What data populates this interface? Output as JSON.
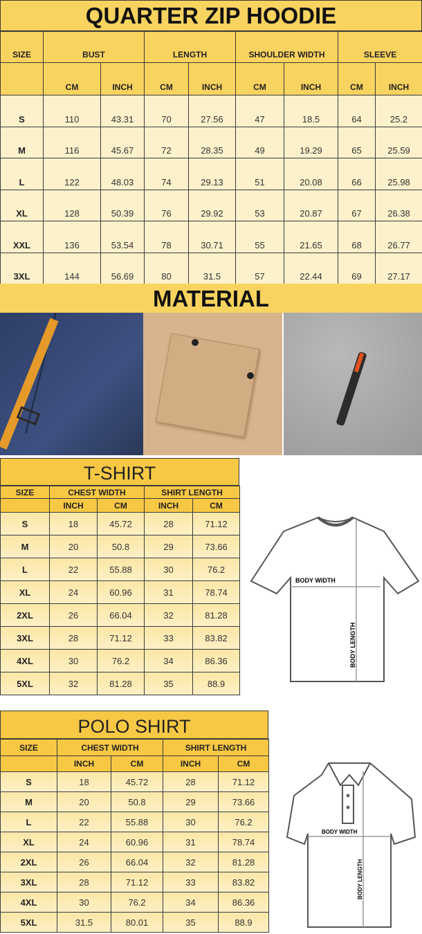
{
  "hoodie": {
    "title": "QUARTER ZIP HOODIE",
    "headers": [
      "SIZE",
      "BUST",
      "LENGTH",
      "SHOULDER WIDTH",
      "SLEEVE"
    ],
    "subheaders": [
      "CM",
      "INCH",
      "CM",
      "INCH",
      "CM",
      "INCH",
      "CM",
      "INCH"
    ],
    "rows": [
      [
        "S",
        "110",
        "43.31",
        "70",
        "27.56",
        "47",
        "18.5",
        "64",
        "25.2"
      ],
      [
        "M",
        "116",
        "45.67",
        "72",
        "28.35",
        "49",
        "19.29",
        "65",
        "25.59"
      ],
      [
        "L",
        "122",
        "48.03",
        "74",
        "29.13",
        "51",
        "20.08",
        "66",
        "25.98"
      ],
      [
        "XL",
        "128",
        "50.39",
        "76",
        "29.92",
        "53",
        "20.87",
        "67",
        "26.38"
      ],
      [
        "XXL",
        "136",
        "53.54",
        "78",
        "30.71",
        "55",
        "21.65",
        "68",
        "26.77"
      ],
      [
        "3XL",
        "144",
        "56.69",
        "80",
        "31.5",
        "57",
        "22.44",
        "69",
        "27.17"
      ]
    ]
  },
  "material": {
    "title": "MATERIAL"
  },
  "tshirt": {
    "title": "T-SHIRT",
    "headers": [
      "SIZE",
      "CHEST WIDTH",
      "SHIRT LENGTH"
    ],
    "subheaders": [
      "INCH",
      "CM",
      "INCH",
      "CM"
    ],
    "rows": [
      [
        "S",
        "18",
        "45.72",
        "28",
        "71.12"
      ],
      [
        "M",
        "20",
        "50.8",
        "29",
        "73.66"
      ],
      [
        "L",
        "22",
        "55.88",
        "30",
        "76.2"
      ],
      [
        "XL",
        "24",
        "60.96",
        "31",
        "78.74"
      ],
      [
        "2XL",
        "26",
        "66.04",
        "32",
        "81.28"
      ],
      [
        "3XL",
        "28",
        "71.12",
        "33",
        "83.82"
      ],
      [
        "4XL",
        "30",
        "76.2",
        "34",
        "86.36"
      ],
      [
        "5XL",
        "32",
        "81.28",
        "35",
        "88.9"
      ]
    ],
    "diagram": {
      "width_label": "BODY WIDTH",
      "length_label": "BODY LENGTH"
    }
  },
  "polo": {
    "title": "POLO SHIRT",
    "headers": [
      "SIZE",
      "CHEST WIDTH",
      "SHIRT LENGTH"
    ],
    "subheaders": [
      "INCH",
      "CM",
      "INCH",
      "CM"
    ],
    "rows": [
      [
        "S",
        "18",
        "45.72",
        "28",
        "71.12"
      ],
      [
        "M",
        "20",
        "50.8",
        "29",
        "73.66"
      ],
      [
        "L",
        "22",
        "55.88",
        "30",
        "76.2"
      ],
      [
        "XL",
        "24",
        "60.96",
        "31",
        "78.74"
      ],
      [
        "2XL",
        "26",
        "66.04",
        "32",
        "81.28"
      ],
      [
        "3XL",
        "28",
        "71.12",
        "33",
        "83.82"
      ],
      [
        "4XL",
        "30",
        "76.2",
        "34",
        "86.36"
      ],
      [
        "5XL",
        "31.5",
        "80.01",
        "35",
        "88.9"
      ]
    ],
    "diagram": {
      "width_label": "BODY WIDTH",
      "length_label": "BODY LENGTH"
    }
  },
  "colors": {
    "header_yellow": "#f9d35f",
    "cell_cream": "#fdf1cb",
    "tshirt_yellow": "#f7c844"
  }
}
